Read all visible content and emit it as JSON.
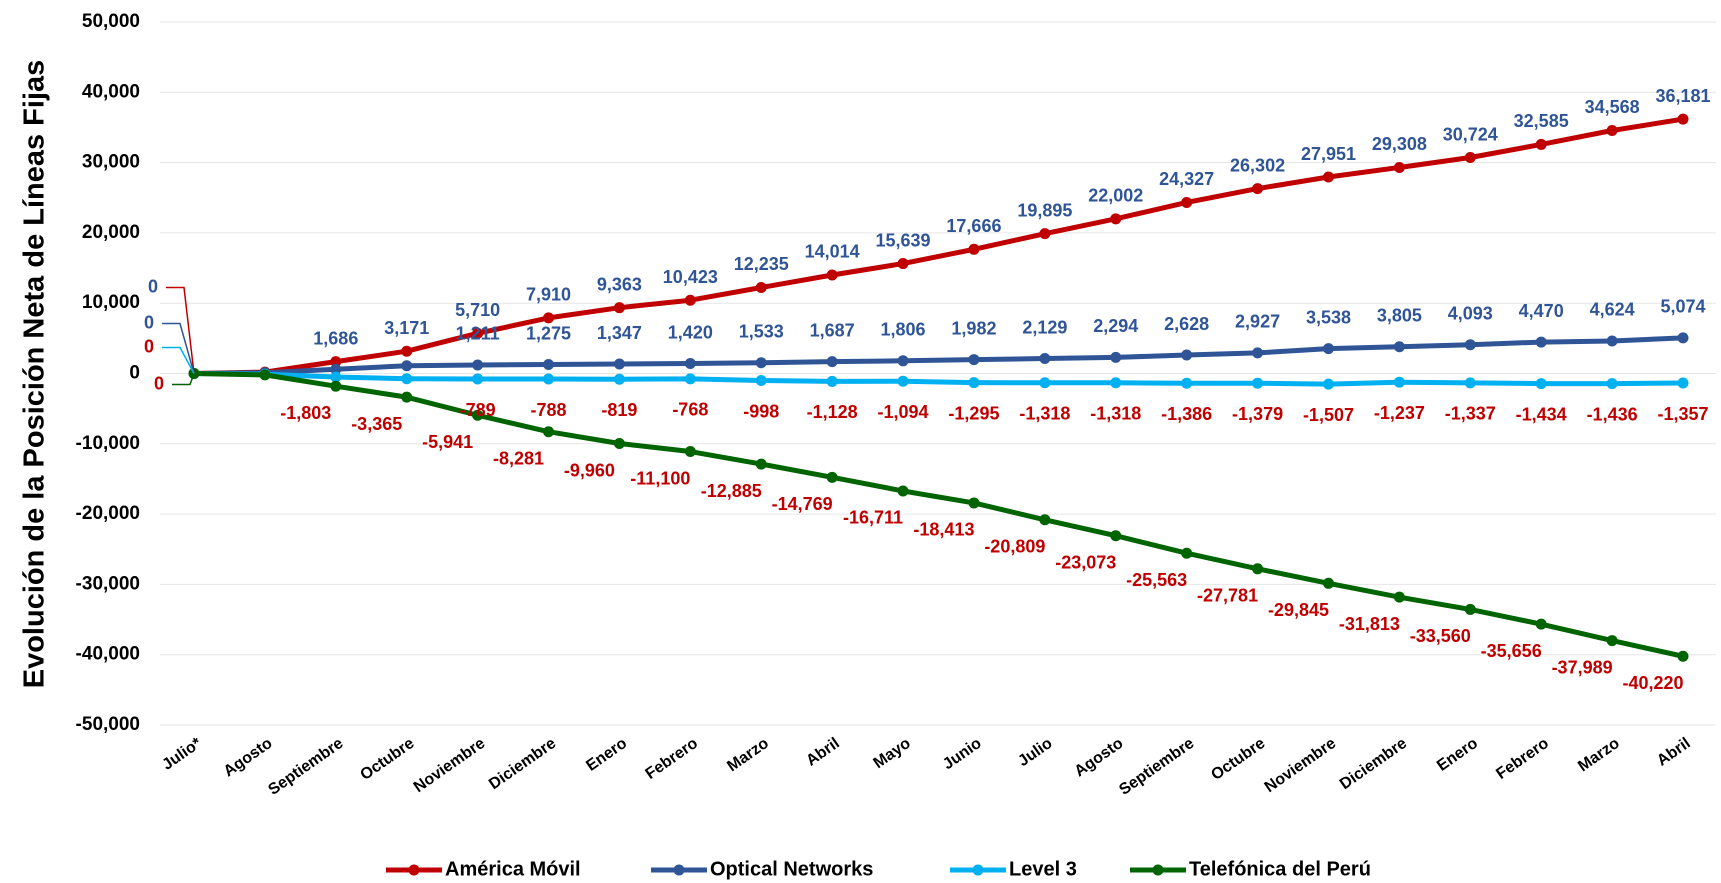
{
  "chart_data": {
    "type": "line",
    "y_label": "Evolución de la Posición Neta de Líneas Fijas",
    "categories": [
      "Julio*",
      "Agosto",
      "Septiembre",
      "Octubre",
      "Noviembre",
      "Diciembre",
      "Enero",
      "Febrero",
      "Marzo",
      "Abril",
      "Mayo",
      "Junio",
      "Julio",
      "Agosto",
      "Septiembre",
      "Octubre",
      "Noviembre",
      "Diciembre",
      "Enero",
      "Febrero",
      "Marzo",
      "Abril"
    ],
    "ylim": [
      -50000,
      50000
    ],
    "yticks": [
      {
        "value": -50000,
        "label": "-50,000"
      },
      {
        "value": -40000,
        "label": "-40,000"
      },
      {
        "value": -30000,
        "label": "-30,000"
      },
      {
        "value": -20000,
        "label": "-20,000"
      },
      {
        "value": -10000,
        "label": "-10,000"
      },
      0,
      {
        "value": 10000,
        "label": "10,000"
      },
      {
        "value": 20000,
        "label": "20,000"
      },
      {
        "value": 30000,
        "label": "30,000"
      },
      {
        "value": 40000,
        "label": "40,000"
      },
      {
        "value": 50000,
        "label": "50,000"
      }
    ],
    "grid": true,
    "series": [
      {
        "name": "América Móvil",
        "color": "#c00000",
        "label_color": "#2f5597",
        "values": [
          0,
          200,
          1686,
          3171,
          5710,
          7910,
          9363,
          10423,
          12235,
          14014,
          15639,
          17666,
          19895,
          22002,
          24327,
          26302,
          27951,
          29308,
          30724,
          32585,
          34568,
          36181
        ],
        "value_labels": [
          "0",
          null,
          "1,686",
          "3,171",
          "5,710",
          "7,910",
          "9,363",
          "10,423",
          "12,235",
          "14,014",
          "15,639",
          "17,666",
          "19,895",
          "22,002",
          "24,327",
          "26,302",
          "27,951",
          "29,308",
          "30,724",
          "32,585",
          "34,568",
          "36,181"
        ]
      },
      {
        "name": "Optical Networks",
        "color": "#2f5597",
        "label_color": "#2f5597",
        "values": [
          0,
          100,
          600,
          1100,
          1211,
          1275,
          1347,
          1420,
          1533,
          1687,
          1806,
          1982,
          2129,
          2294,
          2628,
          2927,
          3538,
          3805,
          4093,
          4470,
          4624,
          5074
        ],
        "value_labels": [
          "0",
          null,
          null,
          null,
          "1,211",
          "1,275",
          "1,347",
          "1,420",
          "1,533",
          "1,687",
          "1,806",
          "1,982",
          "2,129",
          "2,294",
          "2,628",
          "2,927",
          "3,538",
          "3,805",
          "4,093",
          "4,470",
          "4,624",
          "5,074"
        ]
      },
      {
        "name": "Level 3",
        "color": "#00b0f0",
        "label_color": "#c00000",
        "values": [
          0,
          -100,
          -500,
          -750,
          -789,
          -788,
          -819,
          -768,
          -998,
          -1128,
          -1094,
          -1295,
          -1318,
          -1318,
          -1386,
          -1379,
          -1507,
          -1237,
          -1337,
          -1434,
          -1436,
          -1357
        ],
        "value_labels": [
          "0",
          null,
          null,
          null,
          "-789",
          "-788",
          "-819",
          "-768",
          "-998",
          "-1,128",
          "-1,094",
          "-1,295",
          "-1,318",
          "-1,318",
          "-1,386",
          "-1,379",
          "-1,507",
          "-1,237",
          "-1,337",
          "-1,434",
          "-1,436",
          "-1,357"
        ]
      },
      {
        "name": "Telefónica del Perú",
        "color": "#006400",
        "label_color": "#c00000",
        "values": [
          0,
          -200,
          -1803,
          -3365,
          -5941,
          -8281,
          -9960,
          -11100,
          -12885,
          -14769,
          -16711,
          -18413,
          -20809,
          -23073,
          -25563,
          -27781,
          -29845,
          -31813,
          -33560,
          -35656,
          -37989,
          -40220
        ],
        "value_labels": [
          "0",
          null,
          "-1,803",
          "-3,365",
          "-5,941",
          "-8,281",
          "-9,960",
          "-11,100",
          "-12,885",
          "-14,769",
          "-16,711",
          "-18,413",
          "-20,809",
          "-23,073",
          "-25,563",
          "-27,781",
          "-29,845",
          "-31,813",
          "-33,560",
          "-35,656",
          "-37,989",
          "-40,220"
        ]
      }
    ]
  }
}
